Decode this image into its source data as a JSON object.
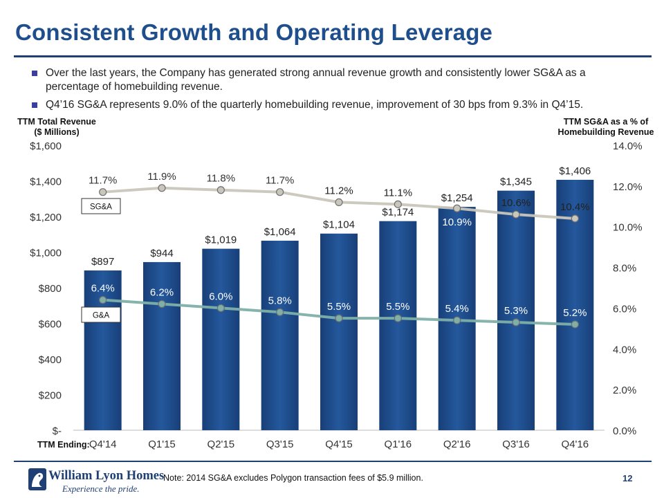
{
  "title": "Consistent Growth and Operating Leverage",
  "bullets": [
    "Over the last years, the Company has generated strong annual revenue growth and consistently lower SG&A as a percentage of homebuilding revenue.",
    "Q4’16 SG&A represents 9.0% of the quarterly homebuilding revenue, improvement of 30 bps from 9.3% in Q4’15."
  ],
  "left_axis_caption": [
    "TTM Total Revenue",
    "($ Millions)"
  ],
  "right_axis_caption": [
    "TTM SG&A as a % of",
    "Homebuilding Revenue"
  ],
  "ttm_ending_label": "TTM Ending:",
  "chart_data": {
    "type": "bar",
    "categories": [
      "Q4'14",
      "Q1'15",
      "Q2'15",
      "Q3'15",
      "Q4'15",
      "Q1'16",
      "Q2'16",
      "Q3'16",
      "Q4'16"
    ],
    "left_axis": {
      "min": 0,
      "max": 1600,
      "ticks": [
        "$-",
        "$200",
        "$400",
        "$600",
        "$800",
        "$1,000",
        "$1,200",
        "$1,400",
        "$1,600"
      ]
    },
    "right_axis": {
      "min": 0,
      "max": 14,
      "ticks": [
        "0.0%",
        "2.0%",
        "4.0%",
        "6.0%",
        "8.0%",
        "10.0%",
        "12.0%",
        "14.0%"
      ]
    },
    "series": [
      {
        "name": "TTM Total Revenue",
        "type": "bar",
        "axis": "left",
        "values": [
          897,
          944,
          1019,
          1064,
          1104,
          1174,
          1254,
          1345,
          1406
        ],
        "labels": [
          "$897",
          "$944",
          "$1,019",
          "$1,064",
          "$1,104",
          "$1,174",
          "$1,254",
          "$1,345",
          "$1,406"
        ],
        "color": "#1f4e8c"
      },
      {
        "name": "SG&A",
        "type": "line",
        "axis": "right",
        "values": [
          11.7,
          11.9,
          11.8,
          11.7,
          11.2,
          11.1,
          10.9,
          10.6,
          10.4
        ],
        "labels": [
          "11.7%",
          "11.9%",
          "11.8%",
          "11.7%",
          "11.2%",
          "11.1%",
          "10.9%",
          "10.6%",
          "10.4%"
        ],
        "color": "#c9c6bb"
      },
      {
        "name": "G&A",
        "type": "line",
        "axis": "right",
        "values": [
          6.4,
          6.2,
          6.0,
          5.8,
          5.5,
          5.5,
          5.4,
          5.3,
          5.2
        ],
        "labels": [
          "6.4%",
          "6.2%",
          "6.0%",
          "5.8%",
          "5.5%",
          "5.5%",
          "5.4%",
          "5.3%",
          "5.2%"
        ],
        "color": "#7fb0a8"
      }
    ],
    "legend_boxes": [
      "SG&A",
      "G&A"
    ]
  },
  "logo": {
    "name": "William Lyon Homes",
    "tagline": "Experience the pride."
  },
  "note": "Note: 2014 SG&A excludes Polygon transaction fees of $5.9 million.",
  "page_number": "12"
}
